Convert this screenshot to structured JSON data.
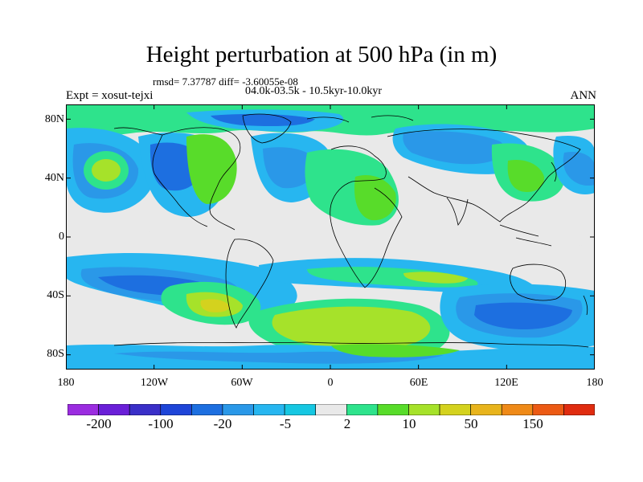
{
  "title": "Height perturbation at 500 hPa (in m)",
  "stats_line": "rmsd= 7.37787 diff= -3.60055e-08",
  "period_line": "04.0k-03.5k - 10.5kyr-10.0kyr",
  "experiment": "Expt = xosut-tejxi",
  "season": "ANN",
  "map": {
    "projection": "cylindrical equidistant",
    "lon_range": [
      -180,
      180
    ],
    "lat_range": [
      -90,
      90
    ],
    "lat_tick_labels": [
      "80N",
      "40N",
      "0",
      "40S",
      "80S"
    ],
    "lat_tick_values": [
      80,
      40,
      0,
      -40,
      -80
    ],
    "lon_tick_labels": [
      "180",
      "120W",
      "60W",
      "0",
      "60E",
      "120E",
      "180"
    ],
    "lon_tick_values": [
      -180,
      -120,
      -60,
      0,
      60,
      120,
      180
    ],
    "coastlines": true
  },
  "colorbar": {
    "colors": [
      "#9b2ce0",
      "#6a1fd8",
      "#3a2fc8",
      "#1e45d8",
      "#1d6fe0",
      "#2a98e8",
      "#27b6f0",
      "#16c7e2",
      "#e9e9e9",
      "#2ee38c",
      "#58dc2a",
      "#a6e22a",
      "#d4d21e",
      "#e8b41c",
      "#ef8a18",
      "#ec5a14",
      "#e02c10"
    ],
    "labels": [
      "-200",
      "-100",
      "-20",
      "-5",
      "2",
      "10",
      "50",
      "150"
    ]
  }
}
